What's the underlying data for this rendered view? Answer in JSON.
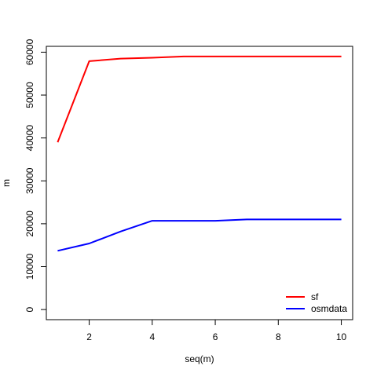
{
  "chart_data": {
    "type": "line",
    "xlabel": "seq(m)",
    "ylabel": "m",
    "xlim": [
      0.64,
      10.36
    ],
    "ylim": [
      -2360,
      61360
    ],
    "x_ticks": [
      2,
      4,
      6,
      8,
      10
    ],
    "x_tick_labels": [
      "2",
      "4",
      "6",
      "8",
      "10"
    ],
    "y_ticks": [
      0,
      10000,
      20000,
      30000,
      40000,
      50000,
      60000
    ],
    "y_tick_labels": [
      "0",
      "10000",
      "20000",
      "30000",
      "40000",
      "50000",
      "60000"
    ],
    "grid": false,
    "legend_position": "bottom-right",
    "x": [
      1,
      2,
      3,
      4,
      5,
      6,
      7,
      8,
      9,
      10
    ],
    "series": [
      {
        "name": "sf",
        "color": "#ff0000",
        "values": [
          39000,
          57900,
          58500,
          58700,
          59000,
          59000,
          59000,
          59000,
          59000,
          59000
        ]
      },
      {
        "name": "osmdata",
        "color": "#0000ff",
        "values": [
          13700,
          15400,
          18200,
          20700,
          20700,
          20700,
          21000,
          21000,
          21000,
          21000
        ]
      }
    ]
  }
}
